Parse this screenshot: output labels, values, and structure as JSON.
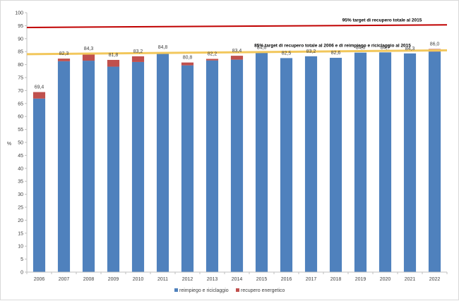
{
  "chart_data": {
    "type": "bar",
    "stacked": true,
    "categories": [
      "2006",
      "2007",
      "2008",
      "2009",
      "2010",
      "2011",
      "2012",
      "2013",
      "2014",
      "2015",
      "2016",
      "2017",
      "2018",
      "2019",
      "2020",
      "2021",
      "2022"
    ],
    "series": [
      {
        "name": "reimpiego e riciclaggio",
        "color": "#4f81bd",
        "values": [
          66.9,
          81.3,
          81.5,
          79.2,
          81.0,
          84.4,
          79.7,
          81.6,
          81.9,
          84.6,
          82.5,
          83.2,
          82.6,
          84.6,
          84.7,
          84.3,
          85.0
        ]
      },
      {
        "name": "recupero energetico",
        "color": "#c0504d",
        "values": [
          2.5,
          1.0,
          2.8,
          2.6,
          2.2,
          0.4,
          1.1,
          0.6,
          1.5,
          0.0,
          0.0,
          0.0,
          0.0,
          0.0,
          0.0,
          0.0,
          1.0
        ]
      }
    ],
    "totals_labels": [
      "69,4",
      "82,3",
      "84,3",
      "81,8",
      "83,2",
      "84,8",
      "80,8",
      "82,2",
      "83,4",
      "84,6",
      "82,5",
      "83,2",
      "82,6",
      "84,6",
      "84,7",
      "84,3",
      "86,0"
    ],
    "totals": [
      69.4,
      82.3,
      84.3,
      81.8,
      83.2,
      84.8,
      80.8,
      82.2,
      83.4,
      84.6,
      82.5,
      83.2,
      82.6,
      84.6,
      84.7,
      84.3,
      86.0
    ],
    "ylabel": "%",
    "ylim": [
      0,
      100
    ],
    "yticks": [
      "0",
      "5",
      "10",
      "15",
      "20",
      "25",
      "30",
      "35",
      "40",
      "45",
      "50",
      "55",
      "60",
      "65",
      "70",
      "75",
      "80",
      "85",
      "90",
      "95",
      "100"
    ],
    "ytick_values": [
      0,
      5,
      10,
      15,
      20,
      25,
      30,
      35,
      40,
      45,
      50,
      55,
      60,
      65,
      70,
      75,
      80,
      85,
      90,
      95,
      100
    ],
    "grid": false,
    "legend_position": "bottom",
    "reference_lines": [
      {
        "label": "95% target di recupero totale al 2015",
        "y_start": 94.3,
        "y_end": 95.3,
        "color": "#c00000"
      },
      {
        "label": "85% target di recupero totale al 2006 e di reimpiego e riciclaggio al 2015",
        "y_start": 84.0,
        "y_end": 85.5,
        "color": "#f2c75c"
      }
    ]
  }
}
